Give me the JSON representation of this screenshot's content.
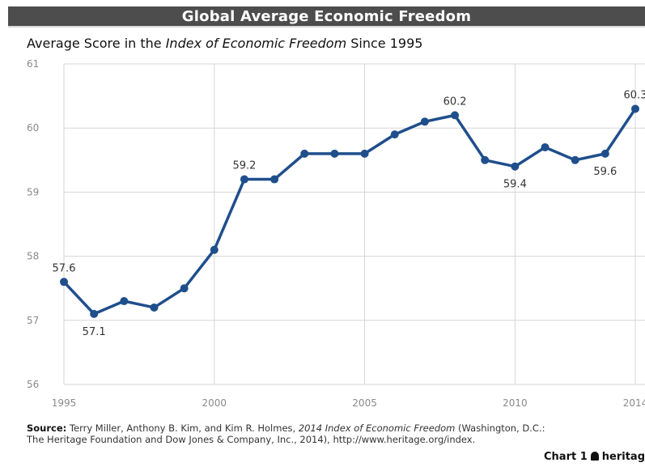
{
  "header": {
    "title": "Global Average Economic Freedom"
  },
  "subtitle": {
    "prefix": "Average Score in the ",
    "italic": "Index of Economic Freedom",
    "suffix": " Since 1995"
  },
  "chart_data": {
    "type": "line",
    "x": [
      1995,
      1996,
      1997,
      1998,
      1999,
      2000,
      2001,
      2002,
      2003,
      2004,
      2005,
      2006,
      2007,
      2008,
      2009,
      2010,
      2011,
      2012,
      2013,
      2014
    ],
    "series": [
      {
        "values": [
          57.6,
          57.1,
          57.3,
          57.2,
          57.5,
          58.1,
          59.2,
          59.2,
          59.6,
          59.6,
          59.6,
          59.9,
          60.1,
          60.2,
          59.5,
          59.4,
          59.7,
          59.5,
          59.6,
          60.3
        ]
      }
    ],
    "xlim": [
      1995,
      2014
    ],
    "ylim": [
      56,
      61
    ],
    "x_ticks": [
      "1995",
      "2000",
      "2005",
      "2010",
      "2014"
    ],
    "y_ticks": [
      "56",
      "57",
      "58",
      "59",
      "60",
      "61"
    ],
    "data_labels": [
      {
        "x": 1995,
        "y": 57.6,
        "text": "57.6"
      },
      {
        "x": 1996,
        "y": 57.1,
        "text": "57.1"
      },
      {
        "x": 2001,
        "y": 59.2,
        "text": "59.2"
      },
      {
        "x": 2008,
        "y": 60.2,
        "text": "60.2"
      },
      {
        "x": 2010,
        "y": 59.4,
        "text": "59.4"
      },
      {
        "x": 2014,
        "y": 60.3,
        "text": "60.3"
      },
      {
        "x": 2013,
        "y": 59.6,
        "text": "59.6"
      }
    ],
    "grid": true,
    "line_color": "#1f4e8c",
    "grid_color": "#d6d6d6",
    "axis_text_color": "#8a8a8a"
  },
  "source": {
    "label": "Source:",
    "line1_a": " Terry Miller, Anthony B. Kim, and Kim R. Holmes, ",
    "line1_italic": "2014 Index of Economic Freedom",
    "line1_b": " (Washington, D.C.:",
    "line2": "The Heritage Foundation and Dow Jones & Company, Inc., 2014), http://www.heritage.org/index."
  },
  "footer": {
    "chart_number": "Chart 1",
    "brand": "heritag"
  }
}
